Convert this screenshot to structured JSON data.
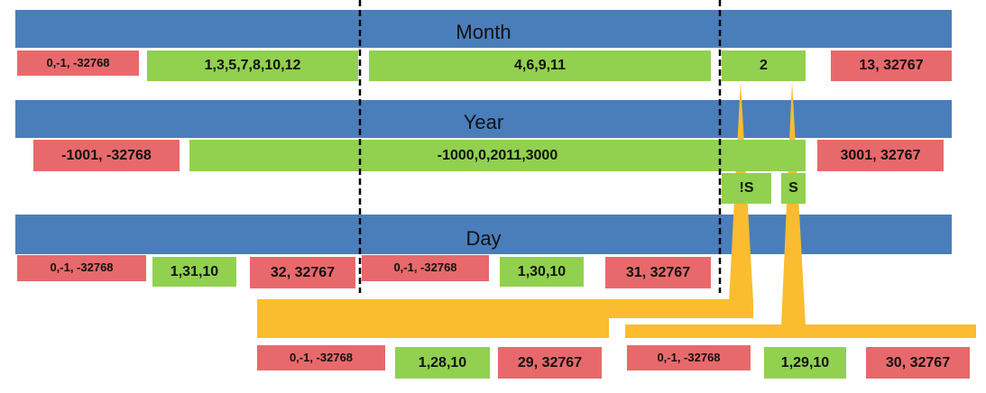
{
  "bars": {
    "month": "Month",
    "year": "Year",
    "day": "Day"
  },
  "month_row": [
    "0,-1, -32768",
    "1,3,5,7,8,10,12",
    "4,6,9,11",
    "2",
    "13, 32767"
  ],
  "year_row": [
    "-1001, -32768",
    "-1000,0,2011,3000",
    "3001, 32767"
  ],
  "leap_markers": [
    "!S",
    "S"
  ],
  "day_row": [
    "0,-1, -32768",
    "1,31,10",
    "32, 32767",
    "0,-1, -32768",
    "1,30,10",
    "31, 32767"
  ],
  "feb_row": [
    "0,-1, -32768",
    "1,28,10",
    "29, 32767",
    "0,-1, -32768",
    "1,29,10",
    "30, 32767"
  ]
}
